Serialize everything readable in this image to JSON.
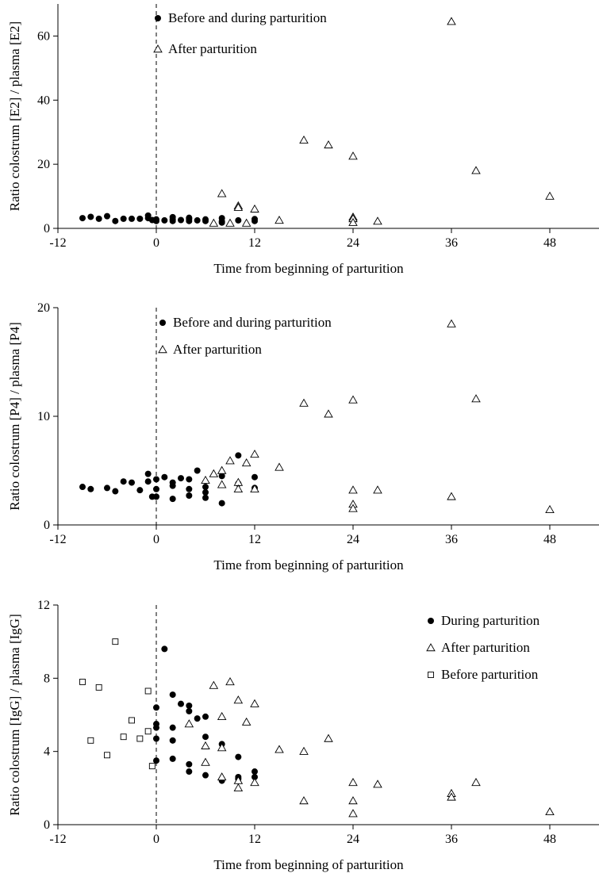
{
  "chart_data": [
    {
      "type": "scatter",
      "xlabel": "Time from beginning of parturition",
      "ylabel": "Ratio colostrum [E2] / plasma [E2]",
      "xlim": [
        -12,
        54
      ],
      "ylim": [
        0,
        70
      ],
      "xticks": [
        -12,
        0,
        12,
        24,
        36,
        48
      ],
      "yticks": [
        0,
        20,
        40,
        60
      ],
      "marker_line_x": 0,
      "legend_position": "top",
      "series": [
        {
          "name": "Before and during parturition",
          "marker": "filled-circle",
          "points": [
            [
              -9,
              3.2
            ],
            [
              -8,
              3.6
            ],
            [
              -7,
              3.0
            ],
            [
              -6,
              3.8
            ],
            [
              -5,
              2.3
            ],
            [
              -4,
              3.0
            ],
            [
              -3,
              3.0
            ],
            [
              -2,
              3.0
            ],
            [
              -1,
              4.0
            ],
            [
              -1,
              3.2
            ],
            [
              -0.5,
              2.6
            ],
            [
              0,
              2.8
            ],
            [
              0,
              2.3
            ],
            [
              1,
              2.5
            ],
            [
              2,
              2.8
            ],
            [
              2,
              2.3
            ],
            [
              2,
              3.5
            ],
            [
              3,
              2.6
            ],
            [
              4,
              2.9
            ],
            [
              4,
              2.3
            ],
            [
              4,
              3.3
            ],
            [
              5,
              2.5
            ],
            [
              6,
              2.3
            ],
            [
              6,
              2.8
            ],
            [
              8,
              2.2
            ],
            [
              8,
              3.2
            ],
            [
              8,
              1.8
            ],
            [
              10,
              2.5
            ],
            [
              12,
              2.9
            ],
            [
              12,
              2.3
            ]
          ]
        },
        {
          "name": "After parturition",
          "marker": "open-triangle",
          "points": [
            [
              36,
              64.5
            ],
            [
              18,
              27.5
            ],
            [
              21,
              26.0
            ],
            [
              24,
              22.5
            ],
            [
              39,
              18.0
            ],
            [
              48,
              10.0
            ],
            [
              8,
              10.8
            ],
            [
              10,
              7.0
            ],
            [
              10,
              6.5
            ],
            [
              12,
              6.0
            ],
            [
              15,
              2.5
            ],
            [
              24,
              3.5
            ],
            [
              24,
              3.0
            ],
            [
              27,
              2.2
            ],
            [
              24,
              1.8
            ],
            [
              7,
              1.6
            ],
            [
              9,
              1.6
            ],
            [
              11,
              1.6
            ]
          ]
        }
      ]
    },
    {
      "type": "scatter",
      "xlabel": "Time from beginning of parturition",
      "ylabel": "Ratio colostrum [P4] / plasma [P4]",
      "xlim": [
        -12,
        54
      ],
      "ylim": [
        0,
        20
      ],
      "xticks": [
        -12,
        0,
        12,
        24,
        36,
        48
      ],
      "yticks": [
        0,
        10,
        20
      ],
      "marker_line_x": 0,
      "legend_position": "top",
      "series": [
        {
          "name": "Before and during parturition",
          "marker": "filled-circle",
          "points": [
            [
              -9,
              3.5
            ],
            [
              -8,
              3.3
            ],
            [
              -6,
              3.4
            ],
            [
              -5,
              3.1
            ],
            [
              -4,
              4.0
            ],
            [
              -3,
              3.9
            ],
            [
              -2,
              3.2
            ],
            [
              -1,
              4.7
            ],
            [
              -1,
              4.0
            ],
            [
              -0.5,
              2.6
            ],
            [
              0,
              4.2
            ],
            [
              0,
              3.3
            ],
            [
              0,
              2.6
            ],
            [
              1,
              4.4
            ],
            [
              2,
              3.9
            ],
            [
              2,
              3.6
            ],
            [
              2,
              2.4
            ],
            [
              3,
              4.3
            ],
            [
              4,
              4.2
            ],
            [
              4,
              3.3
            ],
            [
              4,
              2.7
            ],
            [
              5,
              5.0
            ],
            [
              6,
              3.5
            ],
            [
              6,
              3.0
            ],
            [
              6,
              2.5
            ],
            [
              8,
              4.5
            ],
            [
              8,
              2.0
            ],
            [
              10,
              6.4
            ],
            [
              10,
              3.8
            ],
            [
              12,
              4.4
            ],
            [
              12,
              3.4
            ]
          ]
        },
        {
          "name": "After parturition",
          "marker": "open-triangle",
          "points": [
            [
              36,
              18.5
            ],
            [
              18,
              11.2
            ],
            [
              21,
              10.2
            ],
            [
              24,
              11.5
            ],
            [
              39,
              11.6
            ],
            [
              12,
              6.5
            ],
            [
              11,
              5.7
            ],
            [
              15,
              5.3
            ],
            [
              9,
              5.9
            ],
            [
              8,
              5.0
            ],
            [
              7,
              4.7
            ],
            [
              6,
              4.1
            ],
            [
              8,
              3.7
            ],
            [
              10,
              3.9
            ],
            [
              10,
              3.3
            ],
            [
              12,
              3.3
            ],
            [
              24,
              3.2
            ],
            [
              27,
              3.2
            ],
            [
              24,
              1.9
            ],
            [
              24,
              1.5
            ],
            [
              36,
              2.6
            ],
            [
              48,
              1.4
            ]
          ]
        }
      ]
    },
    {
      "type": "scatter",
      "xlabel": "Time from beginning of parturition",
      "ylabel": "Ratio colostrum [IgG] / plasma [IgG]",
      "xlim": [
        -12,
        54
      ],
      "ylim": [
        0,
        12
      ],
      "xticks": [
        -12,
        0,
        12,
        24,
        36,
        48
      ],
      "yticks": [
        0,
        4,
        8,
        12
      ],
      "marker_line_x": 0,
      "legend_position": "top-right",
      "series": [
        {
          "name": "During parturition",
          "marker": "filled-circle",
          "points": [
            [
              1,
              9.6
            ],
            [
              2,
              7.1
            ],
            [
              3,
              6.6
            ],
            [
              4,
              6.5
            ],
            [
              4,
              6.2
            ],
            [
              5,
              5.8
            ],
            [
              6,
              5.9
            ],
            [
              0,
              6.4
            ],
            [
              0,
              5.5
            ],
            [
              0,
              5.3
            ],
            [
              2,
              5.3
            ],
            [
              0,
              4.7
            ],
            [
              2,
              4.6
            ],
            [
              6,
              4.8
            ],
            [
              8,
              4.4
            ],
            [
              10,
              3.7
            ],
            [
              0,
              3.5
            ],
            [
              2,
              3.6
            ],
            [
              4,
              3.3
            ],
            [
              4,
              2.9
            ],
            [
              6,
              2.7
            ],
            [
              8,
              2.4
            ],
            [
              10,
              2.6
            ],
            [
              10,
              2.5
            ],
            [
              12,
              2.9
            ],
            [
              12,
              2.6
            ]
          ]
        },
        {
          "name": "After parturition",
          "marker": "open-triangle",
          "points": [
            [
              7,
              7.6
            ],
            [
              9,
              7.8
            ],
            [
              10,
              6.8
            ],
            [
              12,
              6.6
            ],
            [
              8,
              5.9
            ],
            [
              11,
              5.6
            ],
            [
              4,
              5.5
            ],
            [
              6,
              4.3
            ],
            [
              8,
              4.2
            ],
            [
              15,
              4.1
            ],
            [
              18,
              4.0
            ],
            [
              21,
              4.7
            ],
            [
              6,
              3.4
            ],
            [
              8,
              2.6
            ],
            [
              10,
              2.4
            ],
            [
              10,
              2.0
            ],
            [
              12,
              2.3
            ],
            [
              18,
              1.3
            ],
            [
              24,
              2.3
            ],
            [
              24,
              1.3
            ],
            [
              24,
              0.6
            ],
            [
              27,
              2.2
            ],
            [
              36,
              1.7
            ],
            [
              36,
              1.5
            ],
            [
              39,
              2.3
            ],
            [
              48,
              0.7
            ]
          ]
        },
        {
          "name": "Before parturition",
          "marker": "open-square",
          "points": [
            [
              -9,
              7.8
            ],
            [
              -5,
              10.0
            ],
            [
              -7,
              7.5
            ],
            [
              -1,
              7.3
            ],
            [
              -3,
              5.7
            ],
            [
              -8,
              4.6
            ],
            [
              -4,
              4.8
            ],
            [
              -2,
              4.7
            ],
            [
              -1,
              5.1
            ],
            [
              -6,
              3.8
            ],
            [
              -0.5,
              3.2
            ]
          ]
        }
      ]
    }
  ]
}
